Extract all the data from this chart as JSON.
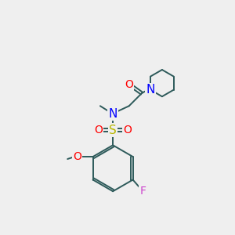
{
  "background_color": "#efefef",
  "bond_color": "#2d5a5a",
  "atom_colors": {
    "O": "#ff0000",
    "N": "#0000ff",
    "S": "#b8b800",
    "F": "#cc44cc",
    "C": "#2d5a5a"
  },
  "font_size_large": 10,
  "font_size_small": 8,
  "line_width": 1.4
}
